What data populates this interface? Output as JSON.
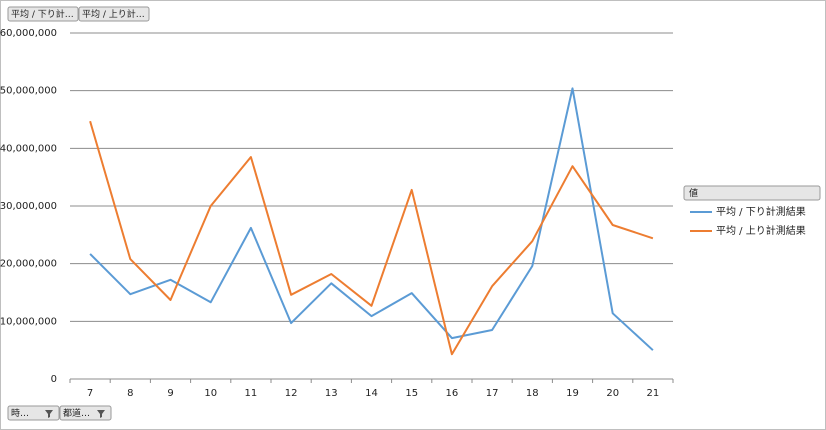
{
  "chart_data": {
    "type": "line",
    "value_field_buttons": [
      "平均 / 下り計…",
      "平均 / 上り計…"
    ],
    "axis_field_buttons": [
      "時…",
      "都道…"
    ],
    "legend_title": "値",
    "categories": [
      "7",
      "8",
      "9",
      "10",
      "11",
      "12",
      "13",
      "14",
      "15",
      "16",
      "17",
      "18",
      "19",
      "20",
      "21"
    ],
    "series": [
      {
        "name": "平均 / 下り計測結果",
        "color": "#5b9bd5",
        "values": [
          21700000,
          14700000,
          17200000,
          13300000,
          26200000,
          9700000,
          16600000,
          10900000,
          14900000,
          7100000,
          8500000,
          19600000,
          50400000,
          11400000,
          5000000
        ]
      },
      {
        "name": "平均 / 上り計測結果",
        "color": "#ed7d31",
        "values": [
          44700000,
          20800000,
          13700000,
          30000000,
          38500000,
          14600000,
          18200000,
          12700000,
          32800000,
          4300000,
          16100000,
          23900000,
          36900000,
          26700000,
          24400000
        ]
      }
    ],
    "ylim": [
      0,
      60000000
    ],
    "yticks": [
      0,
      {
        "value": 10000000,
        "label": "10,000,000"
      },
      {
        "value": 20000000,
        "label": "20,000,000"
      },
      {
        "value": 30000000,
        "label": "30,000,000"
      },
      {
        "value": 40000000,
        "label": "40,000,000"
      },
      {
        "value": 50000000,
        "label": "50,000,000"
      },
      {
        "value": 60000000,
        "label": "60,000,000"
      }
    ],
    "grid": true
  }
}
